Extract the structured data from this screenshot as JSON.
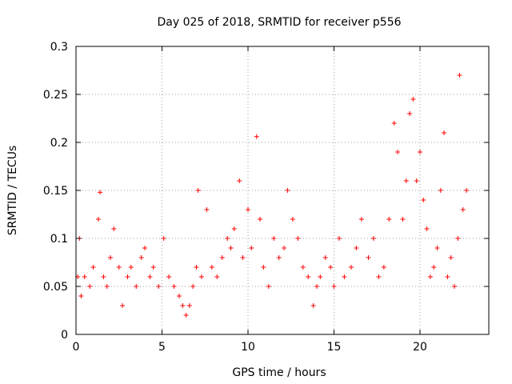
{
  "chart_data": {
    "type": "scatter",
    "title": "Day 025 of 2018, SRMTID for receiver p556",
    "xlabel": "GPS time / hours",
    "ylabel": "SRMTID / TECUs",
    "xlim": [
      0,
      24
    ],
    "ylim": [
      0,
      0.3
    ],
    "x_ticks": [
      0,
      5,
      10,
      15,
      20
    ],
    "x_tick_labels": [
      "0",
      "5",
      "10",
      "15",
      "20"
    ],
    "y_ticks": [
      0,
      0.05,
      0.1,
      0.15,
      0.2,
      0.25,
      0.3
    ],
    "y_tick_labels": [
      "0",
      "0.05",
      "0.1",
      "0.15",
      "0.2",
      "0.25",
      "0.3"
    ],
    "grid": true,
    "marker": "+",
    "color": "#ff0000",
    "series": [
      {
        "name": "SRMTID",
        "x": [
          0.1,
          0.2,
          0.3,
          0.5,
          0.8,
          1.0,
          1.3,
          1.4,
          1.6,
          1.8,
          2.0,
          2.2,
          2.5,
          2.7,
          3.0,
          3.2,
          3.5,
          3.8,
          4.0,
          4.3,
          4.5,
          4.8,
          5.1,
          5.4,
          5.7,
          6.0,
          6.2,
          6.4,
          6.6,
          6.8,
          7.0,
          7.1,
          7.3,
          7.6,
          7.9,
          8.2,
          8.5,
          8.8,
          9.0,
          9.2,
          9.5,
          9.7,
          10.0,
          10.2,
          10.5,
          10.7,
          10.9,
          11.2,
          11.5,
          11.8,
          12.1,
          12.3,
          12.6,
          12.9,
          13.2,
          13.5,
          13.8,
          14.0,
          14.2,
          14.5,
          14.8,
          15.0,
          15.3,
          15.6,
          16.0,
          16.3,
          16.6,
          17.0,
          17.3,
          17.6,
          17.9,
          18.2,
          18.5,
          18.7,
          19.0,
          19.2,
          19.4,
          19.6,
          19.8,
          20.0,
          20.2,
          20.4,
          20.6,
          20.8,
          21.0,
          21.2,
          21.4,
          21.6,
          21.8,
          22.0,
          22.2,
          22.3,
          22.5,
          22.7
        ],
        "y": [
          0.06,
          0.1,
          0.04,
          0.06,
          0.05,
          0.07,
          0.12,
          0.148,
          0.06,
          0.05,
          0.08,
          0.11,
          0.07,
          0.03,
          0.06,
          0.07,
          0.05,
          0.08,
          0.09,
          0.06,
          0.07,
          0.05,
          0.1,
          0.06,
          0.05,
          0.04,
          0.03,
          0.02,
          0.03,
          0.05,
          0.07,
          0.15,
          0.06,
          0.13,
          0.07,
          0.06,
          0.08,
          0.1,
          0.09,
          0.11,
          0.16,
          0.08,
          0.13,
          0.09,
          0.206,
          0.12,
          0.07,
          0.05,
          0.1,
          0.08,
          0.09,
          0.15,
          0.12,
          0.1,
          0.07,
          0.06,
          0.03,
          0.05,
          0.06,
          0.08,
          0.07,
          0.05,
          0.1,
          0.06,
          0.07,
          0.09,
          0.12,
          0.08,
          0.1,
          0.06,
          0.07,
          0.12,
          0.22,
          0.19,
          0.12,
          0.16,
          0.23,
          0.245,
          0.16,
          0.19,
          0.14,
          0.11,
          0.06,
          0.07,
          0.09,
          0.15,
          0.21,
          0.06,
          0.08,
          0.05,
          0.1,
          0.27,
          0.13,
          0.15
        ]
      }
    ]
  }
}
